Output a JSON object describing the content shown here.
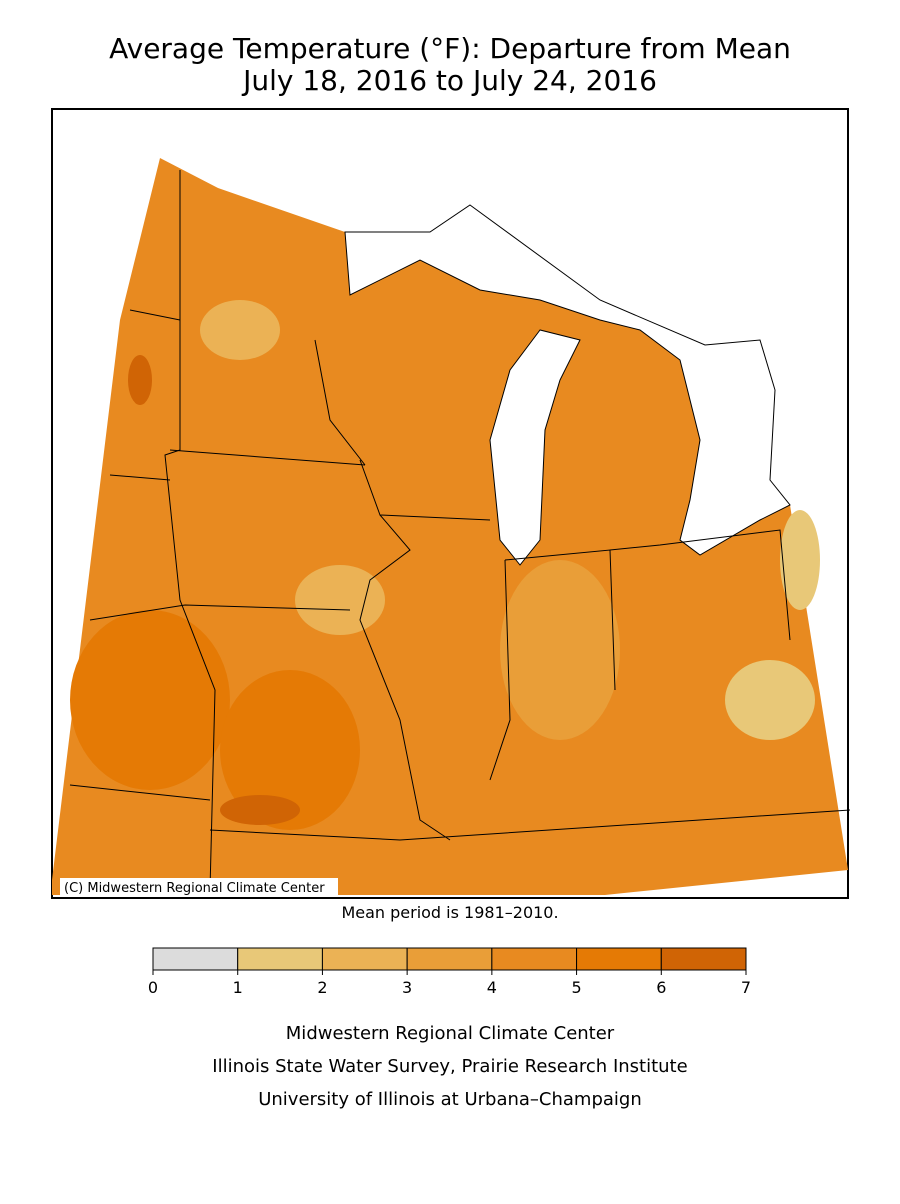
{
  "title": [
    "Average Temperature (°F): Departure from Mean",
    "July 18, 2016 to July 24, 2016"
  ],
  "credit": "(C) Midwestern Regional Climate Center",
  "note": "Mean period is 1981–2010.",
  "legend": {
    "bins": [
      0,
      1,
      2,
      3,
      4,
      5,
      6,
      7
    ],
    "colors": [
      "#dcdcdc",
      "#e8c878",
      "#ebb255",
      "#e99e38",
      "#e88a20",
      "#e57a05",
      "#d06405"
    ]
  },
  "footer": [
    "Midwestern Regional Climate Center",
    "Illinois State Water Survey, Prairie Research Institute",
    "University of Illinois at Urbana–Champaign"
  ]
}
